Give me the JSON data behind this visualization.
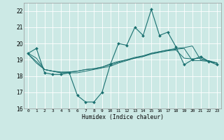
{
  "xlabel": "Humidex (Indice chaleur)",
  "xlim": [
    -0.5,
    23.5
  ],
  "ylim": [
    16.0,
    22.5
  ],
  "yticks": [
    16,
    17,
    18,
    19,
    20,
    21,
    22
  ],
  "xticks": [
    0,
    1,
    2,
    3,
    4,
    5,
    6,
    7,
    8,
    9,
    10,
    11,
    12,
    13,
    14,
    15,
    16,
    17,
    18,
    19,
    20,
    21,
    22,
    23
  ],
  "bg_color": "#cce9e5",
  "line_color": "#1a7070",
  "grid_color": "#ffffff",
  "series": [
    [
      19.4,
      19.7,
      18.2,
      18.1,
      18.1,
      18.2,
      16.8,
      16.4,
      16.4,
      17.0,
      18.7,
      20.0,
      19.9,
      21.0,
      20.5,
      22.1,
      20.5,
      20.7,
      19.8,
      18.7,
      19.0,
      19.2,
      18.9,
      18.7
    ],
    [
      19.4,
      19.1,
      18.4,
      18.3,
      18.2,
      18.2,
      18.2,
      18.3,
      18.4,
      18.5,
      18.6,
      18.8,
      18.95,
      19.1,
      19.2,
      19.4,
      19.5,
      19.6,
      19.7,
      19.75,
      19.85,
      19.0,
      18.95,
      18.8
    ],
    [
      19.35,
      18.8,
      18.4,
      18.3,
      18.2,
      18.25,
      18.3,
      18.4,
      18.45,
      18.55,
      18.7,
      18.85,
      19.0,
      19.15,
      19.25,
      19.4,
      19.5,
      19.6,
      19.65,
      19.7,
      18.95,
      18.95,
      18.9,
      18.8
    ],
    [
      19.35,
      18.9,
      18.4,
      18.3,
      18.25,
      18.25,
      18.3,
      18.4,
      18.45,
      18.55,
      18.75,
      18.9,
      19.0,
      19.1,
      19.2,
      19.35,
      19.45,
      19.55,
      19.6,
      19.1,
      19.05,
      19.1,
      18.9,
      18.8
    ]
  ],
  "marker_indices": [
    0,
    1,
    2,
    3,
    4,
    5,
    6,
    7,
    8,
    9,
    10,
    11,
    12,
    13,
    14,
    15,
    16,
    17,
    18,
    19,
    20,
    21,
    22,
    23
  ]
}
